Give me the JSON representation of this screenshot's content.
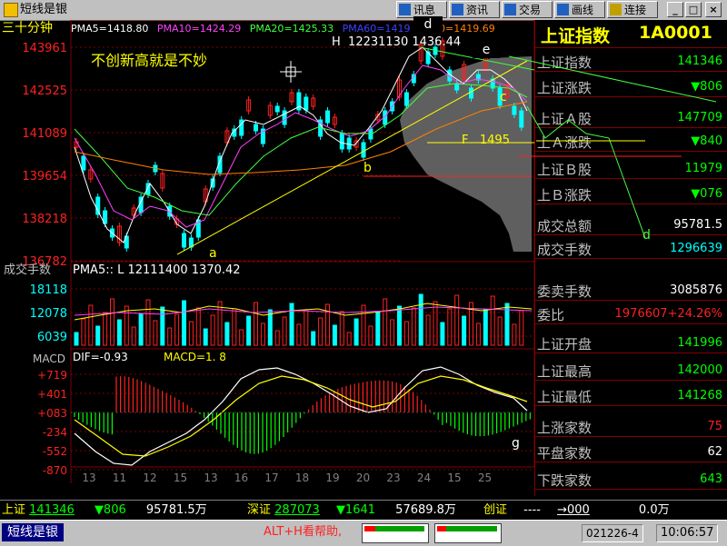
{
  "window": {
    "title": "短线是银"
  },
  "toolbar": {
    "buttons": [
      {
        "label": "讯息"
      },
      {
        "label": "资讯"
      },
      {
        "label": "交易"
      },
      {
        "label": "画线"
      },
      {
        "label": "连接"
      }
    ],
    "window_controls": [
      "_",
      "□",
      "×"
    ]
  },
  "chart_header": {
    "period": "三十分钟",
    "ma": [
      {
        "name": "PMA5",
        "value": "1418.80",
        "color": "#ffffff"
      },
      {
        "name": "PMA10",
        "value": "1424.29",
        "color": "#ff40ff"
      },
      {
        "name": "PMA20",
        "value": "1425.33",
        "color": "#40ff40"
      },
      {
        "name": "PMA60",
        "value": "1419",
        "color": "#4040ff"
      },
      {
        "name": "MA60",
        "value": "1419.69",
        "color": "#ff8000"
      }
    ],
    "high_label": "H",
    "high_time": "12231130",
    "high_value": "1436.44"
  },
  "main_chart": {
    "annotation": "不创新高就是不妙",
    "yticks": [
      "143961",
      "142525",
      "141089",
      "139654",
      "138218",
      "136782"
    ],
    "wave_labels": [
      "a",
      "b",
      "c",
      "d",
      "e"
    ],
    "fib_label": "F",
    "fib_value": "1495"
  },
  "volume_chart": {
    "title": "成交手数",
    "legend": "PMA5:: L  12111400  1370.42",
    "yticks": [
      "18118",
      "12078",
      "6039"
    ]
  },
  "macd_chart": {
    "title": "MACD",
    "dif": "DIF=-0.93",
    "macd": "MACD=1. 8",
    "yticks": [
      "+719",
      "+401",
      "+083",
      "-234",
      "-552",
      "-870"
    ],
    "g_label": "g"
  },
  "x_axis": [
    "13",
    "11",
    "12",
    "15",
    "13",
    "16",
    "17",
    "18",
    "19",
    "20",
    "23",
    "24",
    "15",
    "25"
  ],
  "right_panel": {
    "title": "上证指数",
    "code": "1A0001",
    "rows": [
      {
        "label": "上证指数",
        "value": "141346",
        "color": "#00ff00"
      },
      {
        "label": "上证涨跌",
        "value": "▼806",
        "color": "#00ff00"
      },
      {
        "label": "上证Ａ股",
        "value": "147709",
        "color": "#00ff00"
      },
      {
        "label": "上Ａ涨跌",
        "value": "▼840",
        "color": "#00ff00"
      },
      {
        "label": "上证Ｂ股",
        "value": "11979",
        "color": "#00ff00"
      },
      {
        "label": "上Ｂ涨跌",
        "value": "▼076",
        "color": "#00ff00"
      },
      {
        "label": "成交总额",
        "value": "95781.5",
        "color": "#ffffff"
      },
      {
        "label": "成交手数",
        "value": "1296639",
        "color": "#00ffff"
      },
      {
        "label": "委卖手数",
        "value": "3085876",
        "color": "#ffffff"
      },
      {
        "label": "委比",
        "value": "1976607+24.26%",
        "color": "#ff2020"
      },
      {
        "label": "上证开盘",
        "value": "141996",
        "color": "#00ff00"
      },
      {
        "label": "上证最高",
        "value": "142000",
        "color": "#00ff00"
      },
      {
        "label": "上证最低",
        "value": "141268",
        "color": "#00ff00"
      },
      {
        "label": "上涨家数",
        "value": "75",
        "color": "#ff2020"
      },
      {
        "label": "平盘家数",
        "value": "62",
        "color": "#ffffff"
      },
      {
        "label": "下跌家数",
        "value": "643",
        "color": "#00ff00"
      }
    ],
    "d_label": "d"
  },
  "status_bar": {
    "sh_label": "上证",
    "sh_value": "141346",
    "sh_change": "▼806",
    "sh_amount": "95781.5万",
    "sz_label": "深证",
    "sz_value": "287073",
    "sz_change": "▼1641",
    "sz_amount": "57689.8万",
    "cy_label": "创证",
    "cy_value": "----",
    "cy_change": "→000",
    "cy_amount": "0.0万"
  },
  "taskbar": {
    "app_name": "短线是银",
    "help_text": "ALT+H看帮助,",
    "date": "021226-4",
    "time": "10:06:57"
  },
  "colors": {
    "up": "#ff2020",
    "down": "#00ffff",
    "grid": "#800000",
    "axis_text": "#ff2020"
  }
}
